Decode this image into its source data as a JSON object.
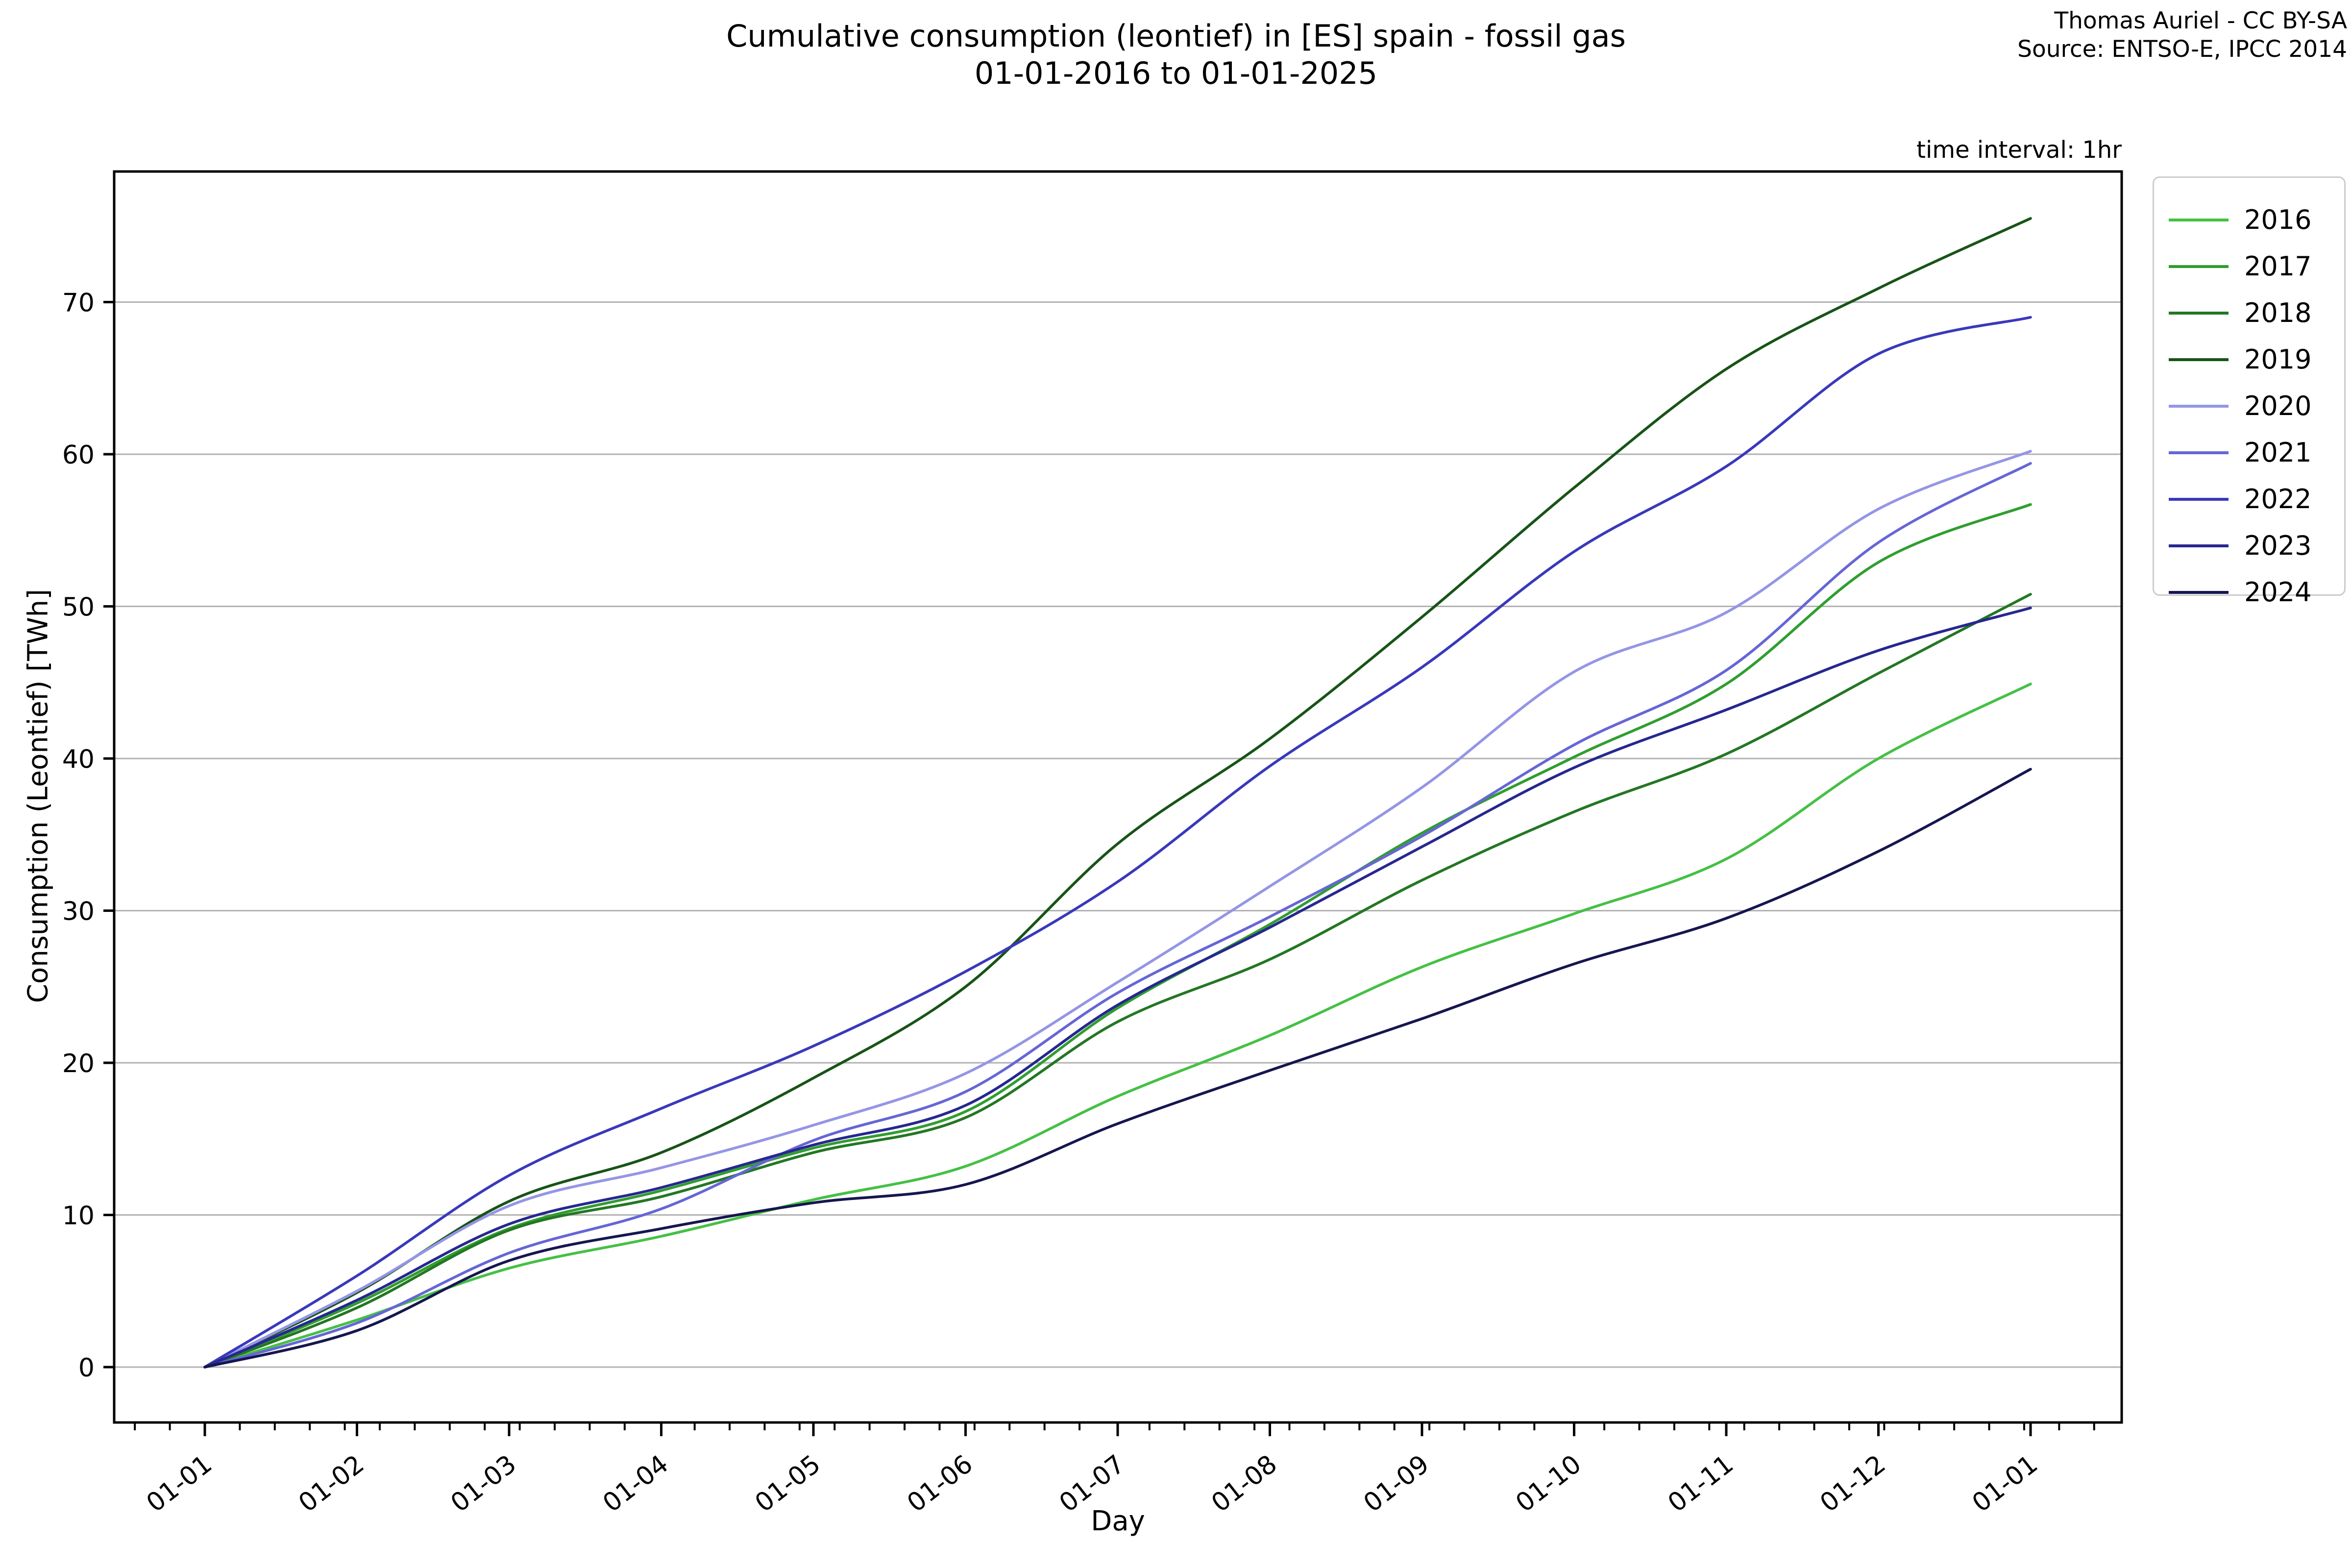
{
  "title": {
    "line1": "Cumulative consumption (leontief) in [ES] spain - fossil gas",
    "line2": "01-01-2016 to 01-01-2025"
  },
  "attribution": {
    "line1": "Thomas Auriel - CC BY-SA",
    "line2": "Source: ENTSO-E, IPCC 2014"
  },
  "annotation": "time interval: 1hr",
  "chart_data": {
    "type": "line",
    "title": "Cumulative consumption (leontief) in [ES] spain - fossil gas 01-01-2016 to 01-01-2025",
    "xlabel": "Day",
    "ylabel": "Consumption (Leontief) [TWh]",
    "x_tick_labels": [
      "01-01",
      "01-02",
      "01-03",
      "01-04",
      "01-05",
      "01-06",
      "01-07",
      "01-08",
      "01-09",
      "01-10",
      "01-11",
      "01-12",
      "01-01"
    ],
    "y_ticks": [
      0,
      10,
      20,
      30,
      40,
      50,
      60,
      70
    ],
    "ylim": [
      -3.5,
      78.6
    ],
    "grid": "horizontal-only",
    "grid_color": "#b2b2b2",
    "axis_color": "#000000",
    "legend_position": "outside-upper-right",
    "legend_title": "",
    "series": [
      {
        "name": "2016",
        "color": "#45c045",
        "values": [
          0,
          3.1,
          6.5,
          8.6,
          11.0,
          13.2,
          17.8,
          21.8,
          26.3,
          29.8,
          33.4,
          40.0,
          44.9
        ]
      },
      {
        "name": "2017",
        "color": "#2f9e2f",
        "values": [
          0,
          4.2,
          9.1,
          11.6,
          14.4,
          16.8,
          23.6,
          29.1,
          35.1,
          40.1,
          44.9,
          52.9,
          56.7
        ]
      },
      {
        "name": "2018",
        "color": "#237723",
        "values": [
          0,
          3.9,
          9.0,
          11.2,
          14.1,
          16.4,
          22.7,
          26.8,
          32.0,
          36.5,
          40.3,
          45.6,
          50.8
        ]
      },
      {
        "name": "2019",
        "color": "#175417",
        "values": [
          0,
          4.9,
          10.9,
          14.1,
          19.0,
          25.0,
          34.4,
          41.3,
          49.3,
          57.8,
          65.6,
          70.9,
          75.5
        ]
      },
      {
        "name": "2020",
        "color": "#9595e6",
        "values": [
          0,
          5.0,
          10.6,
          13.1,
          15.9,
          19.3,
          25.3,
          31.6,
          38.1,
          45.7,
          49.6,
          56.4,
          60.2
        ]
      },
      {
        "name": "2021",
        "color": "#6666d6",
        "values": [
          0,
          2.9,
          7.5,
          10.4,
          14.9,
          18.1,
          24.6,
          29.6,
          34.9,
          40.9,
          45.8,
          54.2,
          59.4
        ]
      },
      {
        "name": "2022",
        "color": "#3939bb",
        "values": [
          0,
          6.0,
          12.6,
          17.0,
          21.1,
          26.0,
          31.9,
          39.5,
          46.0,
          53.6,
          59.2,
          66.6,
          69.0
        ]
      },
      {
        "name": "2023",
        "color": "#272790",
        "values": [
          0,
          4.4,
          9.4,
          11.8,
          14.6,
          17.2,
          23.8,
          28.9,
          34.2,
          39.4,
          43.2,
          47.1,
          49.9
        ]
      },
      {
        "name": "2024",
        "color": "#161650",
        "values": [
          0,
          2.4,
          7.0,
          9.1,
          10.8,
          12.0,
          16.0,
          19.5,
          22.9,
          26.5,
          29.5,
          33.9,
          39.3
        ]
      }
    ]
  }
}
